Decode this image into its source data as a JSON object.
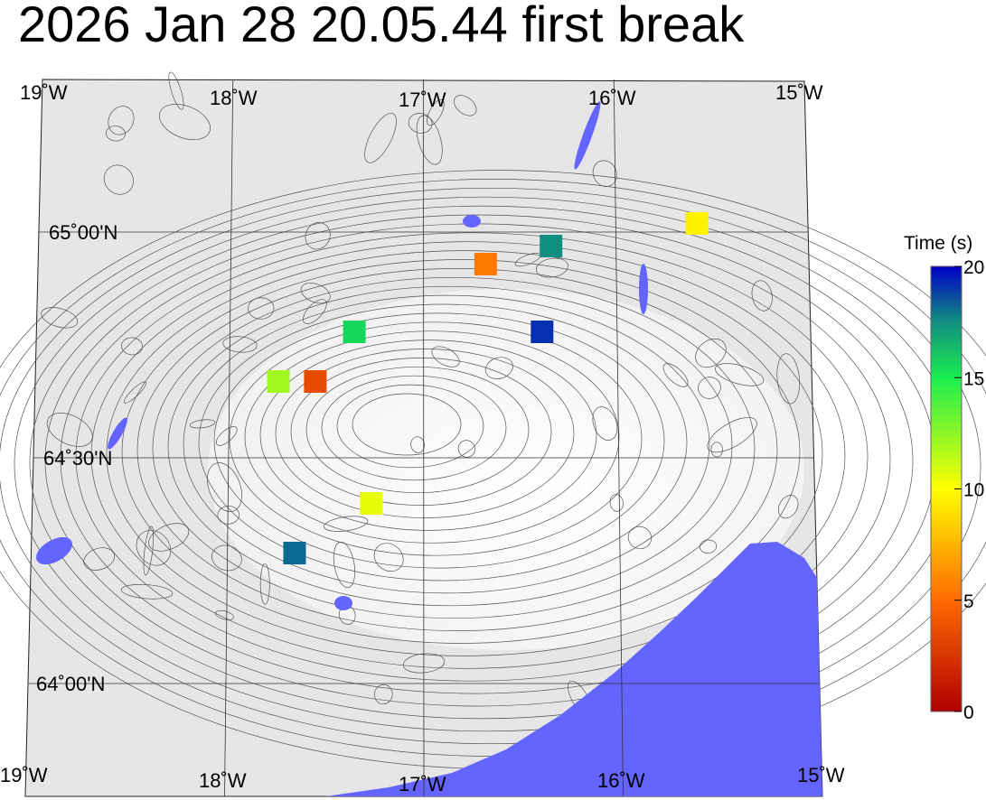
{
  "title": "2026 Jan 28 20.05.44 first break",
  "map": {
    "frame_lon_range": [
      -19,
      -15
    ],
    "frame_lat_range": [
      63.75,
      65.34
    ],
    "lon_labels_top": [
      "19˚W",
      "18˚W",
      "17˚W",
      "16˚W",
      "15˚W"
    ],
    "lon_labels_bottom": [
      "19˚W",
      "18˚W",
      "17˚W",
      "16˚W",
      "15˚W"
    ],
    "lat_labels": [
      "65˚00'N",
      "64˚30'N",
      "64˚00'N"
    ],
    "colors": {
      "land": "#e8e8e8",
      "water": "#6464ff",
      "contour": "#444444",
      "grid": "#333333"
    }
  },
  "colorbar": {
    "label": "Time (s)",
    "ticks": [
      "0",
      "5",
      "10",
      "15",
      "20"
    ],
    "range": [
      0,
      20
    ],
    "stops": [
      "#b00000",
      "#ff6a00",
      "#ffff00",
      "#1aee50",
      "#0000c8"
    ]
  },
  "stations": [
    {
      "lon": -15.58,
      "lat": 65.02,
      "time": 9.6
    },
    {
      "lon": -16.34,
      "lat": 64.97,
      "time": 17.0
    },
    {
      "lon": -16.68,
      "lat": 64.93,
      "time": 5.5
    },
    {
      "lon": -16.39,
      "lat": 64.78,
      "time": 19.0
    },
    {
      "lon": -17.36,
      "lat": 64.78,
      "time": 15.5
    },
    {
      "lon": -17.75,
      "lat": 64.67,
      "time": 12.0
    },
    {
      "lon": -17.56,
      "lat": 64.67,
      "time": 3.5
    },
    {
      "lon": -17.27,
      "lat": 64.4,
      "time": 10.5
    },
    {
      "lon": -17.66,
      "lat": 64.29,
      "time": 17.8
    }
  ]
}
